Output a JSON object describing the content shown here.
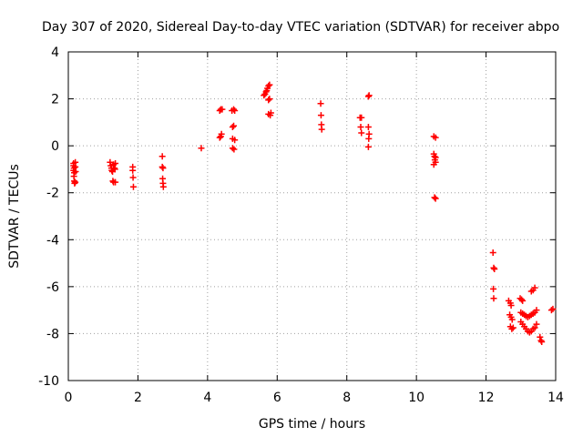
{
  "chart_data": {
    "type": "scatter",
    "title": "Day 307 of 2020, Sidereal Day-to-day VTEC variation (SDTVAR) for receiver abpo",
    "xlabel": "GPS time / hours",
    "ylabel": "SDTVAR / TECUs",
    "xlim": [
      0,
      14
    ],
    "ylim": [
      -10,
      4
    ],
    "xticks": [
      0,
      2,
      4,
      6,
      8,
      10,
      12,
      14
    ],
    "yticks": [
      -10,
      -8,
      -6,
      -4,
      -2,
      0,
      2,
      4
    ],
    "xtick_labels": [
      "0",
      "2",
      "4",
      "6",
      "8",
      "10",
      "12",
      "14"
    ],
    "ytick_labels": [
      "-10",
      "-8",
      "-6",
      "-4",
      "-2",
      "0",
      "2",
      "4"
    ],
    "grid": true,
    "marker": "plus",
    "color": "#ff0000",
    "series": [
      {
        "name": "SDTVAR",
        "points": [
          [
            0.15,
            -0.75
          ],
          [
            0.15,
            -0.85
          ],
          [
            0.16,
            -0.95
          ],
          [
            0.15,
            -1.05
          ],
          [
            0.17,
            -1.15
          ],
          [
            0.16,
            -1.3
          ],
          [
            0.17,
            -1.5
          ],
          [
            0.18,
            -1.6
          ],
          [
            0.2,
            -0.7
          ],
          [
            0.2,
            -0.9
          ],
          [
            0.21,
            -1.1
          ],
          [
            0.2,
            -1.55
          ],
          [
            1.2,
            -0.7
          ],
          [
            1.22,
            -0.85
          ],
          [
            1.24,
            -0.95
          ],
          [
            1.25,
            -1.05
          ],
          [
            1.27,
            -1.1
          ],
          [
            1.3,
            -0.8
          ],
          [
            1.32,
            -0.95
          ],
          [
            1.34,
            -1.0
          ],
          [
            1.28,
            -1.5
          ],
          [
            1.3,
            -1.55
          ],
          [
            1.35,
            -1.55
          ],
          [
            1.35,
            -0.75
          ],
          [
            1.85,
            -0.9
          ],
          [
            1.85,
            -1.05
          ],
          [
            1.86,
            -1.35
          ],
          [
            1.87,
            -1.75
          ],
          [
            2.7,
            -0.45
          ],
          [
            2.7,
            -0.9
          ],
          [
            2.72,
            -0.95
          ],
          [
            2.71,
            -1.4
          ],
          [
            2.72,
            -1.6
          ],
          [
            2.73,
            -1.75
          ],
          [
            3.82,
            -0.1
          ],
          [
            4.35,
            0.35
          ],
          [
            4.38,
            0.4
          ],
          [
            4.4,
            0.5
          ],
          [
            4.35,
            1.5
          ],
          [
            4.38,
            1.55
          ],
          [
            4.42,
            1.55
          ],
          [
            4.7,
            1.5
          ],
          [
            4.75,
            1.55
          ],
          [
            4.78,
            1.5
          ],
          [
            4.72,
            0.8
          ],
          [
            4.75,
            0.85
          ],
          [
            4.72,
            0.3
          ],
          [
            4.78,
            0.25
          ],
          [
            4.72,
            -0.1
          ],
          [
            4.76,
            -0.15
          ],
          [
            5.62,
            2.15
          ],
          [
            5.65,
            2.2
          ],
          [
            5.68,
            2.3
          ],
          [
            5.7,
            2.35
          ],
          [
            5.72,
            2.45
          ],
          [
            5.75,
            2.55
          ],
          [
            5.78,
            2.6
          ],
          [
            5.75,
            1.95
          ],
          [
            5.78,
            2.0
          ],
          [
            5.75,
            1.35
          ],
          [
            5.8,
            1.3
          ],
          [
            5.82,
            1.4
          ],
          [
            7.25,
            1.8
          ],
          [
            7.26,
            1.3
          ],
          [
            7.27,
            0.9
          ],
          [
            7.28,
            0.7
          ],
          [
            8.38,
            1.2
          ],
          [
            8.42,
            1.2
          ],
          [
            8.4,
            0.8
          ],
          [
            8.42,
            0.55
          ],
          [
            8.62,
            2.1
          ],
          [
            8.64,
            2.15
          ],
          [
            8.62,
            0.8
          ],
          [
            8.64,
            0.5
          ],
          [
            8.63,
            0.3
          ],
          [
            8.62,
            -0.05
          ],
          [
            10.5,
            0.4
          ],
          [
            10.55,
            0.35
          ],
          [
            10.5,
            -0.35
          ],
          [
            10.52,
            -0.45
          ],
          [
            10.55,
            -0.5
          ],
          [
            10.53,
            -0.6
          ],
          [
            10.55,
            -0.7
          ],
          [
            10.5,
            -0.8
          ],
          [
            10.52,
            -2.2
          ],
          [
            10.55,
            -2.25
          ],
          [
            12.2,
            -4.55
          ],
          [
            12.22,
            -5.2
          ],
          [
            12.24,
            -5.25
          ],
          [
            12.21,
            -6.1
          ],
          [
            12.22,
            -6.5
          ],
          [
            12.65,
            -6.6
          ],
          [
            12.7,
            -6.7
          ],
          [
            12.72,
            -6.8
          ],
          [
            12.68,
            -7.2
          ],
          [
            12.72,
            -7.3
          ],
          [
            12.75,
            -7.4
          ],
          [
            12.7,
            -7.7
          ],
          [
            12.74,
            -7.8
          ],
          [
            12.78,
            -7.75
          ],
          [
            12.98,
            -6.5
          ],
          [
            13.02,
            -6.55
          ],
          [
            13.05,
            -6.6
          ],
          [
            13.0,
            -7.1
          ],
          [
            13.05,
            -7.15
          ],
          [
            13.1,
            -7.2
          ],
          [
            13.15,
            -7.25
          ],
          [
            13.2,
            -7.3
          ],
          [
            13.25,
            -7.25
          ],
          [
            13.3,
            -7.2
          ],
          [
            13.35,
            -7.15
          ],
          [
            13.4,
            -7.1
          ],
          [
            13.45,
            -7.0
          ],
          [
            13.0,
            -7.5
          ],
          [
            13.05,
            -7.6
          ],
          [
            13.1,
            -7.7
          ],
          [
            13.15,
            -7.8
          ],
          [
            13.2,
            -7.9
          ],
          [
            13.25,
            -7.95
          ],
          [
            13.3,
            -7.9
          ],
          [
            13.35,
            -7.8
          ],
          [
            13.4,
            -7.75
          ],
          [
            13.45,
            -7.6
          ],
          [
            13.3,
            -6.2
          ],
          [
            13.35,
            -6.15
          ],
          [
            13.4,
            -6.05
          ],
          [
            13.55,
            -8.15
          ],
          [
            13.58,
            -8.3
          ],
          [
            13.6,
            -8.35
          ],
          [
            13.88,
            -7.0
          ],
          [
            13.92,
            -6.95
          ]
        ]
      }
    ]
  }
}
